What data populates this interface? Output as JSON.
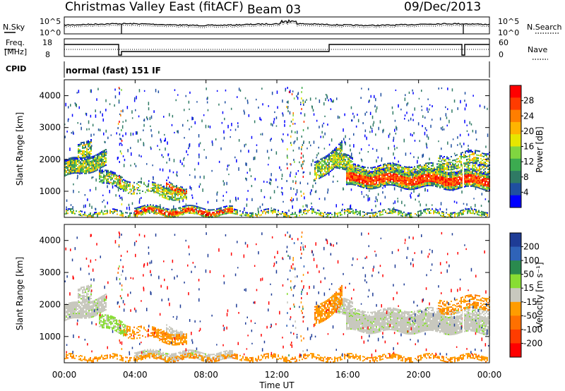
{
  "header": {
    "station": "Christmas Valley East (fitACF)",
    "beam": "Beam 03",
    "date": "09/Dec/2013"
  },
  "noise_panel": {
    "left_label": "N.Sky",
    "right_label": "N.Search",
    "ticks": [
      "10^5",
      "10^0"
    ]
  },
  "freq_panel": {
    "left_label_1": "Freq.",
    "left_label_2": "[MHz]",
    "right_label": "Nave",
    "left_ticks": [
      "18",
      "8"
    ],
    "right_ticks": [
      "60",
      "0"
    ]
  },
  "cpid": {
    "label": "CPID",
    "mode": "normal (fast) 151 IF"
  },
  "chart_data": [
    {
      "type": "heatmap",
      "name": "power",
      "ylabel": "Slant Range [km]",
      "ylim": [
        180,
        4500
      ],
      "yticks": [
        "4000",
        "3000",
        "2000",
        "1000"
      ],
      "colorbar": {
        "label": "Power [dB]",
        "ticks": [
          "28",
          "24",
          "20",
          "16",
          "12",
          "8",
          "4"
        ],
        "colors": [
          "#ff0000",
          "#ff3b00",
          "#ff7e00",
          "#ffb400",
          "#e6e600",
          "#80d540",
          "#3cab50",
          "#2f7a64",
          "#1f4fa0",
          "#0000ff"
        ]
      }
    },
    {
      "type": "heatmap",
      "name": "velocity",
      "ylabel": "Slant Range [km]",
      "ylim": [
        180,
        4500
      ],
      "yticks": [
        "4000",
        "3000",
        "2000",
        "1000"
      ],
      "colorbar": {
        "label": "Velocity [m s⁻¹]",
        "ticks": [
          "200",
          "100",
          "50",
          "15",
          "-15",
          "-50",
          "-100",
          "-200"
        ],
        "colors": [
          "#1e3c96",
          "#2f63b8",
          "#2a8a4e",
          "#88dd33",
          "#c8c8be",
          "#ff9c00",
          "#ff7000",
          "#ff3c00",
          "#ff0000"
        ]
      }
    }
  ],
  "x_axis": {
    "label": "Time UT",
    "ticks": [
      "00:00",
      "04:00",
      "08:00",
      "12:00",
      "16:00",
      "20:00",
      "00:00"
    ]
  }
}
